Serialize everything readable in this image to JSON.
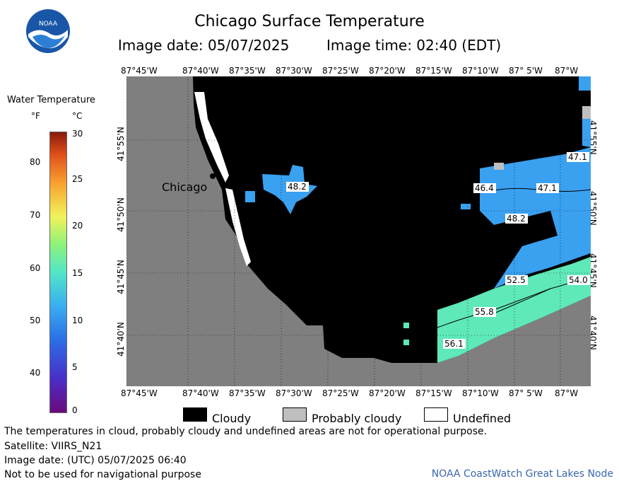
{
  "header": {
    "title": "Chicago Surface Temperature",
    "image_date": "Image date: 05/07/2025",
    "image_time": "Image time: 02:40 (EDT)",
    "logo_text": "NOAA"
  },
  "colorbar": {
    "title": "Water Temperature",
    "unit_f": "°F",
    "unit_c": "°C",
    "f_ticks": [
      "80",
      "70",
      "60",
      "50",
      "40"
    ],
    "c_ticks": [
      "30",
      "25",
      "20",
      "15",
      "10",
      "5",
      "0"
    ]
  },
  "axes": {
    "lon_ticks": [
      "87°45'W",
      "87°40'W",
      "87°35'W",
      "87°30'W",
      "87°25'W",
      "87°20'W",
      "87°15'W",
      "87°10'W",
      "87° 5'W",
      "87°W"
    ],
    "lat_ticks": [
      "41°55'N",
      "41°50'N",
      "41°45'N",
      "41°40'N"
    ]
  },
  "map": {
    "city_label": "Chicago",
    "temperature_labels": [
      "48.2",
      "47.1",
      "46.4",
      "47.1",
      "48.2",
      "52.5",
      "54.0",
      "55.8",
      "56.1"
    ],
    "colors": {
      "land": "#7f7f7f",
      "cloud": "#000000",
      "probably_cloudy": "#bfbfbf",
      "undefined": "#ffffff",
      "water_cool": "#3aa0f0",
      "water_warm": "#5fe8b8"
    }
  },
  "legend": {
    "cloudy": "Cloudy",
    "probably_cloudy": "Probably cloudy",
    "undefined": "Undefined"
  },
  "footer": {
    "disclaimer": "The temperatures in cloud, probably cloudy and undefined areas are not for operational purpose.",
    "satellite": "Satellite: VIIRS_N21",
    "utc_date": "Image date: (UTC) 05/07/2025  06:40",
    "nav_warning": "Not to be used for navigational purpose",
    "credit": "NOAA CoastWatch Great Lakes Node"
  }
}
